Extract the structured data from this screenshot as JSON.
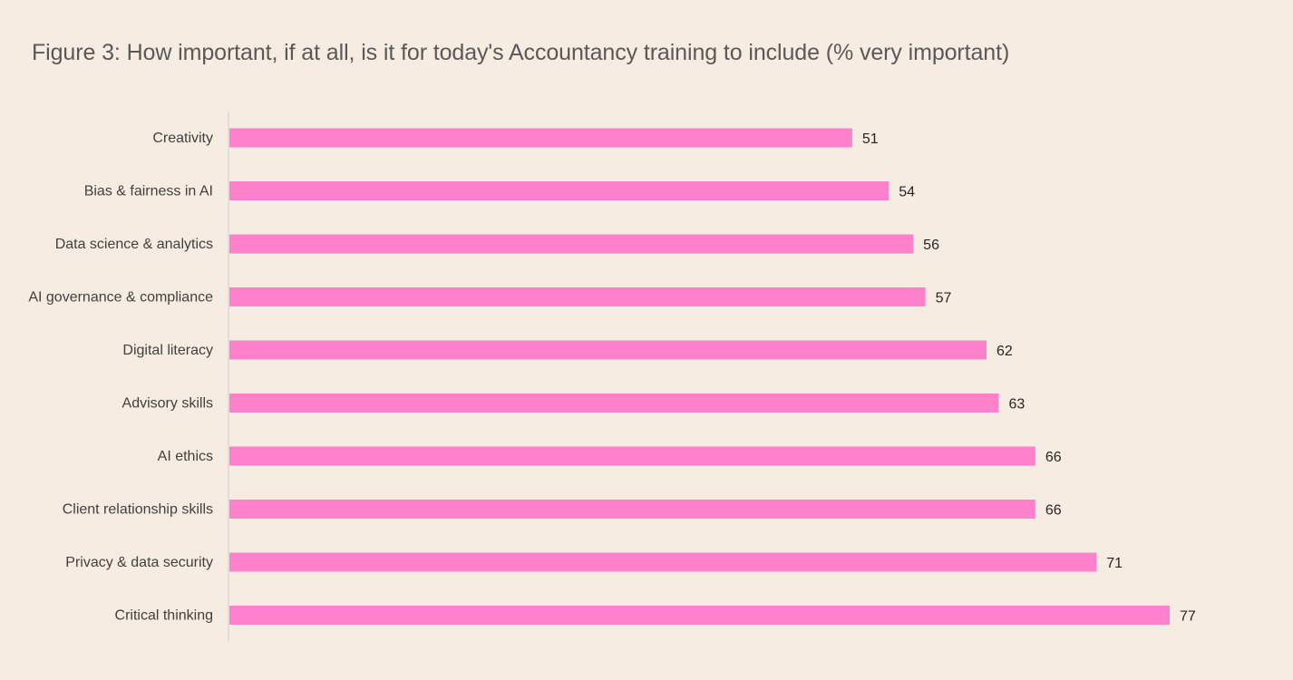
{
  "chart_data": {
    "type": "bar",
    "orientation": "horizontal",
    "title": "Figure 3: How important, if at all, is it for today's Accountancy training to include (% very important)",
    "categories": [
      "Creativity",
      "Bias & fairness in AI",
      "Data science & analytics",
      "AI governance & compliance",
      "Digital literacy",
      "Advisory skills",
      "AI ethics",
      "Client relationship skills",
      "Privacy & data security",
      "Critical thinking"
    ],
    "values": [
      51,
      54,
      56,
      57,
      62,
      63,
      66,
      66,
      71,
      77
    ],
    "data_labels": [
      "51",
      "54",
      "56",
      "57",
      "62",
      "63",
      "66",
      "66",
      "71",
      "77"
    ],
    "xlim": [
      0,
      77
    ],
    "xlabel": "",
    "ylabel": "",
    "grid": false,
    "legend": "none",
    "bar_color": "#ff80cb",
    "axis_color": "#d9d9d9",
    "background_color": "#f7ece2"
  }
}
